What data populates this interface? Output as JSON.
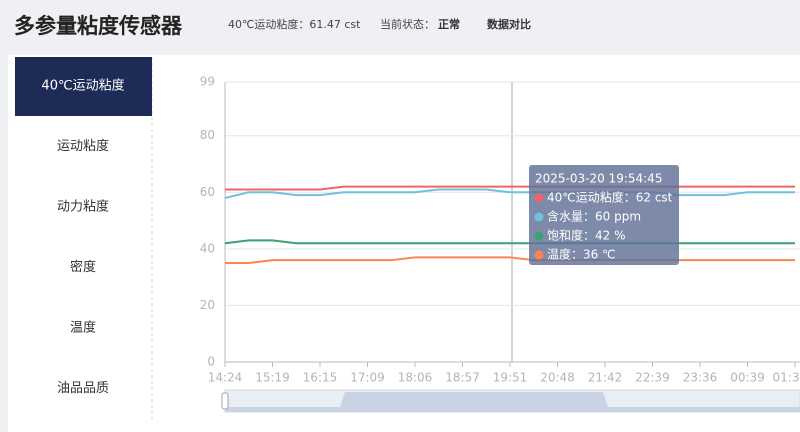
{
  "header": {
    "title": "多参量粘度传感器",
    "reading": "40℃运动粘度：61.47 cst",
    "status_label": "当前状态：",
    "status_value": "正常",
    "compare": "数据对比"
  },
  "sidebar": {
    "tabs": [
      "40℃运动粘度",
      "运动粘度",
      "动力粘度",
      "密度",
      "温度",
      "油品品质"
    ]
  },
  "chart_data": {
    "type": "line",
    "categories": [
      "14:24",
      null,
      "15:19",
      null,
      "16:15",
      null,
      "17:09",
      null,
      "18:06",
      null,
      "18:57",
      null,
      "19:51",
      null,
      "20:48",
      null,
      "21:42",
      null,
      "22:39",
      null,
      "23:36",
      null,
      "00:39",
      null,
      "01:3"
    ],
    "series": [
      {
        "color": "#ee6666",
        "values": [
          61,
          61,
          61,
          61,
          61,
          62,
          62,
          62,
          62,
          62,
          62,
          62,
          62,
          62,
          62,
          62,
          62,
          62,
          62,
          62,
          62,
          62,
          62,
          62,
          62
        ]
      },
      {
        "color": "#73c0de",
        "values": [
          58,
          60,
          60,
          59,
          59,
          60,
          60,
          60,
          60,
          61,
          61,
          61,
          60,
          60,
          60,
          60,
          60,
          60,
          60,
          59,
          59,
          59,
          60,
          60,
          60
        ]
      },
      {
        "color": "#3ba272",
        "values": [
          42,
          43,
          43,
          42,
          42,
          42,
          42,
          42,
          42,
          42,
          42,
          42,
          42,
          42,
          42,
          42,
          42,
          42,
          42,
          42,
          42,
          42,
          42,
          42,
          42
        ]
      },
      {
        "color": "#fc8452",
        "values": [
          35,
          35,
          36,
          36,
          36,
          36,
          36,
          36,
          37,
          37,
          37,
          37,
          37,
          36,
          36,
          36,
          36,
          36,
          36,
          36,
          36,
          36,
          36,
          36,
          36
        ]
      }
    ],
    "ylim": [
      0,
      99
    ],
    "yticks": [
      0,
      20,
      40,
      60,
      80,
      99
    ],
    "grid": true,
    "tooltip": {
      "title": "2025-03-20 19:54:45",
      "items": [
        "40℃运动粘度：62 cst",
        "含水量：60 ppm",
        "饱和度：42 %",
        "温度：36 ℃"
      ]
    }
  }
}
